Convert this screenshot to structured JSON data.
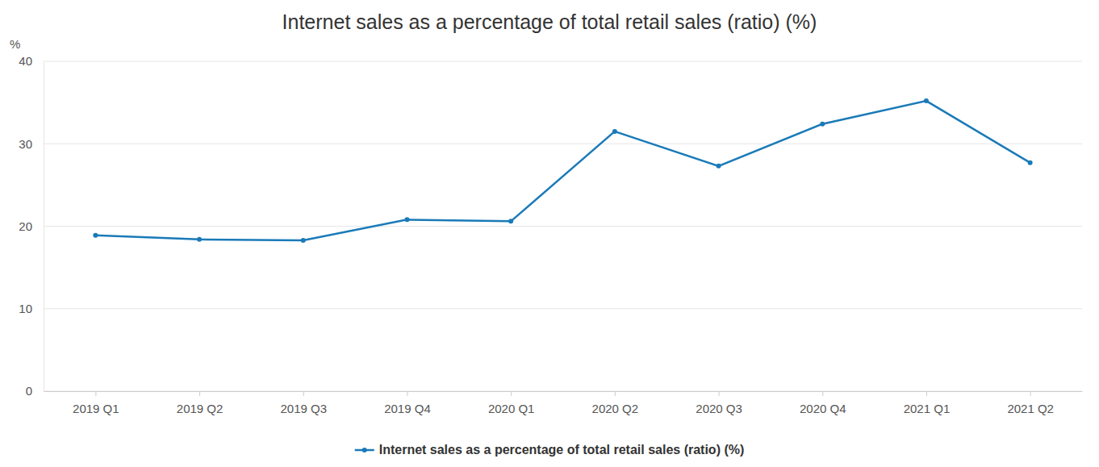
{
  "chart_data": {
    "type": "line",
    "title": "Internet sales as a percentage of total retail sales (ratio) (%)",
    "y_label": "%",
    "categories": [
      "2019 Q1",
      "2019 Q2",
      "2019 Q3",
      "2019 Q4",
      "2020 Q1",
      "2020 Q2",
      "2020 Q3",
      "2020 Q4",
      "2021 Q1",
      "2021 Q2"
    ],
    "series": [
      {
        "name": "Internet sales as a percentage of total retail sales (ratio) (%)",
        "color": "#1a7ab8",
        "marker": "circle",
        "values": [
          18.9,
          18.4,
          18.3,
          20.8,
          20.6,
          31.5,
          27.3,
          32.4,
          35.2,
          27.7
        ]
      }
    ],
    "ylim": [
      0,
      40
    ],
    "yticks": [
      0,
      10,
      20,
      30,
      40
    ],
    "grid": true,
    "legend": "bottom"
  }
}
